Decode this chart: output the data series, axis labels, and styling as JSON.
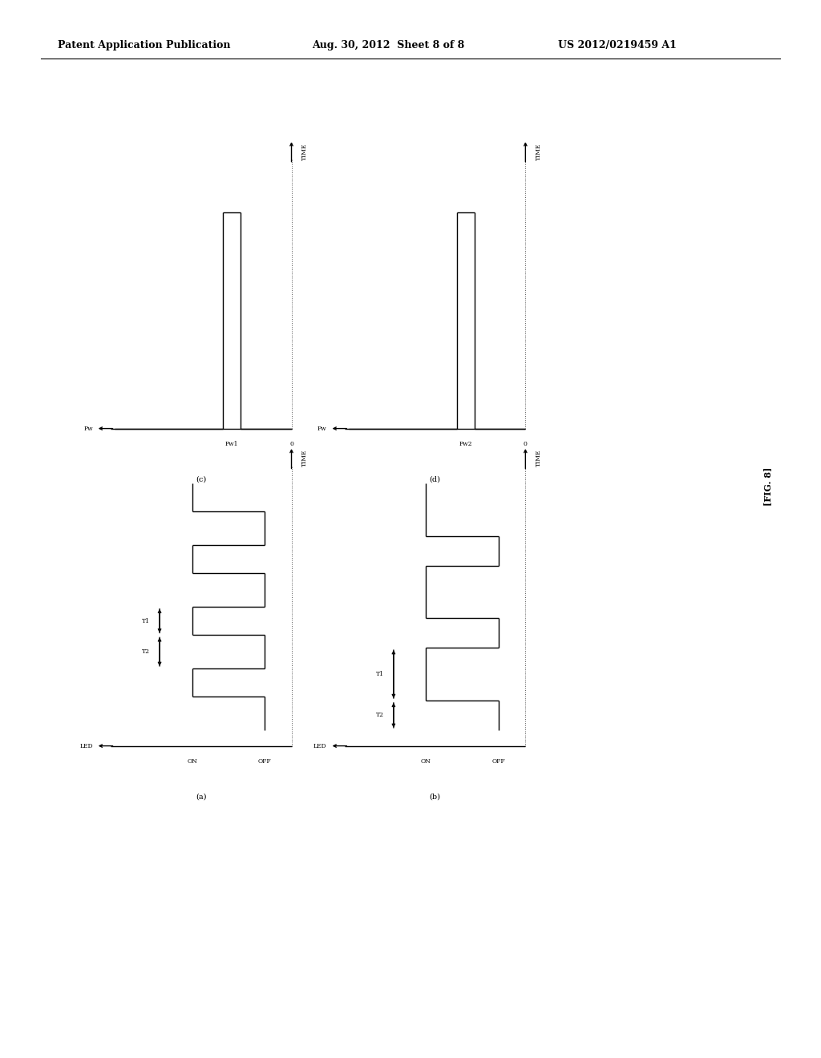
{
  "header_left": "Patent Application Publication",
  "header_center": "Aug. 30, 2012  Sheet 8 of 8",
  "header_right": "US 2012/0219459 A1",
  "fig_label": "[FIG. 8]",
  "bg_color": "#ffffff",
  "line_color": "#000000",
  "text_color": "#000000",
  "diagrams": {
    "a": {
      "label": "(a)",
      "type": "led",
      "n_pulses": 4,
      "t_on": 0.3,
      "t_off": 0.35,
      "t1_lbl": "T1",
      "t2_lbl": "T2",
      "h_lbl": "LED",
      "v_lbl": "TIME",
      "on_lbl": "ON",
      "off_lbl": "OFF",
      "ann_pulse_idx": 1
    },
    "b": {
      "label": "(b)",
      "type": "led",
      "n_pulses": 3,
      "t_on": 0.45,
      "t_off": 0.3,
      "t1_lbl": "T1",
      "t2_lbl": "T2",
      "h_lbl": "LED",
      "v_lbl": "TIME",
      "on_lbl": "ON",
      "off_lbl": "OFF",
      "ann_pulse_idx": 0
    },
    "c": {
      "label": "(c)",
      "type": "spike",
      "h_lbl": "Pw",
      "v_lbl": "TIME",
      "x_tick": "Pw1"
    },
    "d": {
      "label": "(d)",
      "type": "spike",
      "h_lbl": "Pw",
      "v_lbl": "TIME",
      "x_tick": "Pw2"
    }
  }
}
